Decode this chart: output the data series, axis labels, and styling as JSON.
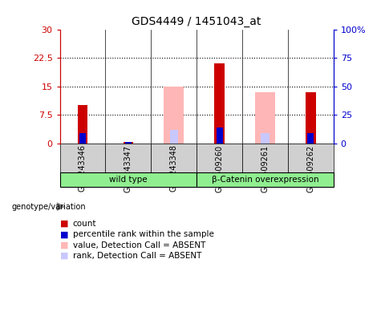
{
  "title": "GDS4449 / 1451043_at",
  "categories": [
    "GSM243346",
    "GSM243347",
    "GSM243348",
    "GSM509260",
    "GSM509261",
    "GSM509262"
  ],
  "red_bars": [
    10.0,
    0.3,
    0.0,
    21.0,
    0.0,
    13.5
  ],
  "blue_bars": [
    9.0,
    1.0,
    0.0,
    14.0,
    0.0,
    9.0
  ],
  "pink_bars": [
    0.0,
    0.0,
    15.0,
    0.0,
    13.5,
    0.0
  ],
  "lightblue_bars": [
    0.0,
    1.2,
    12.0,
    0.0,
    9.0,
    0.0
  ],
  "ylim_left": [
    0,
    30
  ],
  "ylim_right": [
    0,
    100
  ],
  "yticks_left": [
    0,
    7.5,
    15,
    22.5,
    30
  ],
  "ytick_labels_left": [
    "0",
    "7.5",
    "15",
    "22.5",
    "30"
  ],
  "yticks_right": [
    0,
    25,
    50,
    75,
    100
  ],
  "ytick_labels_right": [
    "0",
    "25",
    "50",
    "75",
    "100%"
  ],
  "left_axis_color": "#cc0000",
  "right_axis_color": "#0000cc",
  "plot_bg": "#ffffff",
  "group_labels": [
    "wild type",
    "β-Catenin overexpression"
  ],
  "group_color": "#90EE90",
  "sample_bg": "#d0d0d0",
  "legend_items": [
    {
      "color": "#cc0000",
      "label": "count"
    },
    {
      "color": "#0000cc",
      "label": "percentile rank within the sample"
    },
    {
      "color": "#ffb6b6",
      "label": "value, Detection Call = ABSENT"
    },
    {
      "color": "#c8c8ff",
      "label": "rank, Detection Call = ABSENT"
    }
  ],
  "pink_bar_width": 0.45,
  "lightblue_bar_width": 0.18,
  "red_bar_width": 0.22,
  "blue_bar_width": 0.14
}
